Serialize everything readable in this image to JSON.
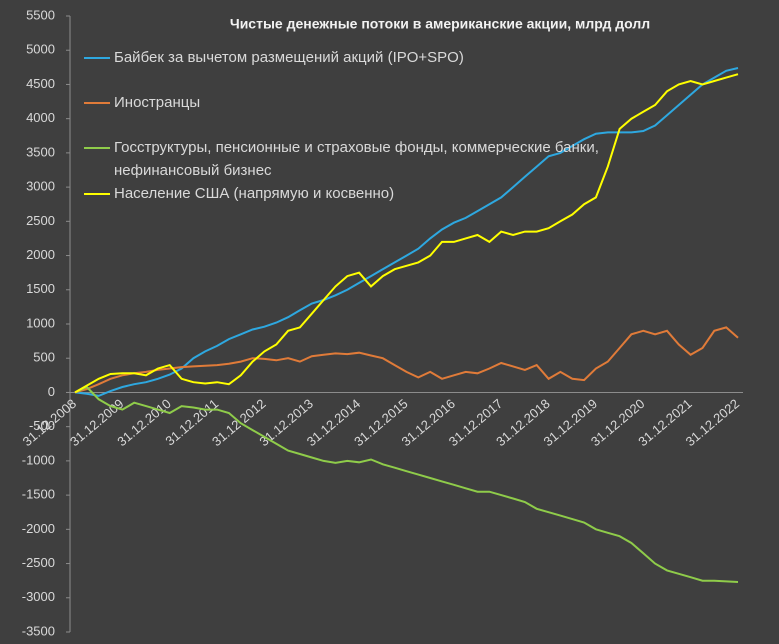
{
  "chart_data": {
    "type": "line",
    "title": "Чистые денежные потоки в американские акции, млрд долл",
    "categories": [
      "31.12.2008",
      null,
      null,
      null,
      "31.12.2009",
      null,
      null,
      null,
      "31.12.2010",
      null,
      null,
      null,
      "31.12.2011",
      null,
      null,
      null,
      "31.12.2012",
      null,
      null,
      null,
      "31.12.2013",
      null,
      null,
      null,
      "31.12.2014",
      null,
      null,
      null,
      "31.12.2015",
      null,
      null,
      null,
      "31.12.2016",
      null,
      null,
      null,
      "31.12.2017",
      null,
      null,
      null,
      "31.12.2018",
      null,
      null,
      null,
      "31.12.2019",
      null,
      null,
      null,
      "31.12.2020",
      null,
      null,
      null,
      "31.12.2021",
      null,
      null,
      null,
      "31.12.2022"
    ],
    "series": [
      {
        "name": "Байбек за вычетом размещений акций (IPO+SPO)",
        "color": "#2ea8e0",
        "values": [
          0,
          -20,
          -50,
          20,
          80,
          120,
          150,
          200,
          260,
          350,
          500,
          600,
          680,
          780,
          850,
          920,
          960,
          1020,
          1100,
          1200,
          1300,
          1350,
          1420,
          1500,
          1600,
          1700,
          1800,
          1900,
          2000,
          2100,
          2250,
          2380,
          2480,
          2550,
          2650,
          2750,
          2850,
          3000,
          3150,
          3300,
          3450,
          3500,
          3600,
          3700,
          3780,
          3800,
          3800,
          3800,
          3820,
          3900,
          4050,
          4200,
          4350,
          4500,
          4600,
          4700,
          4740
        ]
      },
      {
        "name": "Иностранцы",
        "color": "#e07b39",
        "values": [
          0,
          50,
          120,
          200,
          250,
          280,
          300,
          330,
          350,
          370,
          380,
          390,
          400,
          420,
          450,
          500,
          490,
          470,
          500,
          450,
          530,
          550,
          570,
          560,
          580,
          540,
          500,
          400,
          300,
          220,
          300,
          200,
          250,
          300,
          280,
          350,
          430,
          380,
          330,
          400,
          200,
          300,
          200,
          180,
          350,
          450,
          650,
          850,
          900,
          850,
          900,
          700,
          550,
          650,
          900,
          950,
          800
        ]
      },
      {
        "name": "Госструктуры, пенсионные и страховые фонды, коммерческие банки, нефинансовый бизнес",
        "color": "#8fcc4a",
        "values": [
          0,
          80,
          -100,
          -200,
          -250,
          -150,
          -200,
          -250,
          -300,
          -200,
          -220,
          -250,
          -250,
          -300,
          -450,
          -550,
          -650,
          -750,
          -850,
          -900,
          -950,
          -1000,
          -1030,
          -1000,
          -1020,
          -980,
          -1050,
          -1100,
          -1150,
          -1200,
          -1250,
          -1300,
          -1350,
          -1400,
          -1450,
          -1450,
          -1500,
          -1550,
          -1600,
          -1700,
          -1750,
          -1800,
          -1850,
          -1900,
          -2000,
          -2050,
          -2100,
          -2200,
          -2350,
          -2500,
          -2600,
          -2650,
          -2700,
          -2750,
          -2750,
          -2760,
          -2770
        ]
      },
      {
        "name": "Население США (напрямую и косвенно)",
        "color": "#ffff00",
        "values": [
          0,
          100,
          200,
          270,
          280,
          280,
          250,
          350,
          400,
          200,
          150,
          130,
          150,
          120,
          250,
          450,
          600,
          700,
          900,
          950,
          1150,
          1350,
          1550,
          1700,
          1750,
          1550,
          1700,
          1800,
          1850,
          1900,
          2000,
          2200,
          2200,
          2250,
          2300,
          2200,
          2350,
          2300,
          2350,
          2350,
          2400,
          2500,
          2600,
          2750,
          2850,
          3300,
          3850,
          4000,
          4100,
          4200,
          4400,
          4500,
          4550,
          4500,
          4550,
          4600,
          4650
        ]
      }
    ],
    "ylim": [
      -3500,
      5500
    ],
    "yticks": [
      -3500,
      -3000,
      -2500,
      -2000,
      -1500,
      -1000,
      -500,
      0,
      500,
      1000,
      1500,
      2000,
      2500,
      3000,
      3500,
      4000,
      4500,
      5000,
      5500
    ],
    "grid": false
  }
}
